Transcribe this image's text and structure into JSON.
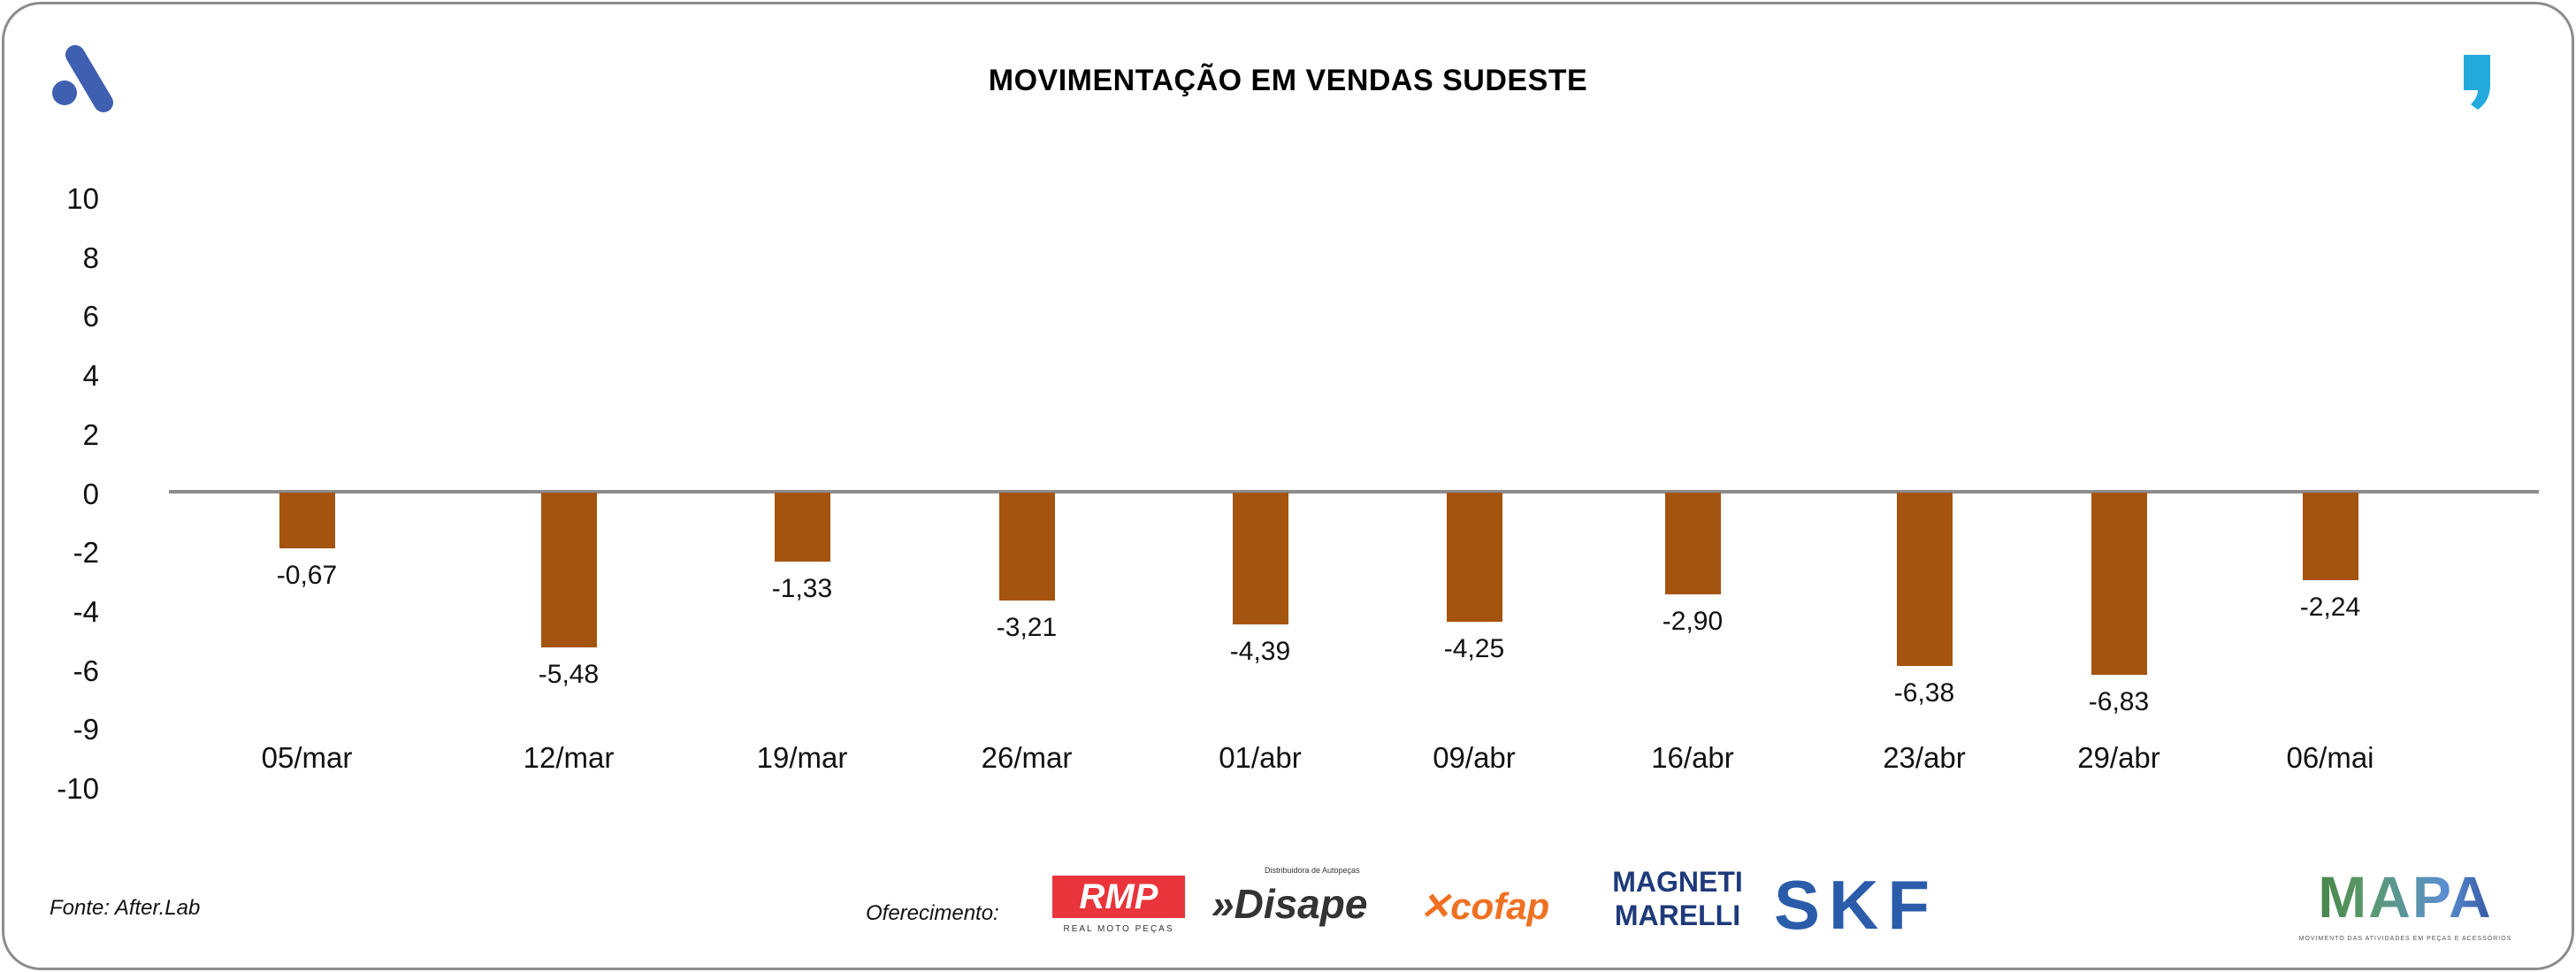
{
  "title": "MOVIMENTAÇÃO EM VENDAS SUDESTE",
  "footer": {
    "source": "Fonte: After.Lab",
    "sponsor_label": "Oferecimento:",
    "sponsors": [
      "RMP",
      "Disape",
      "cofap",
      "MAGNETI MARELLI",
      "SKF"
    ],
    "sponsor_taglines": {
      "rmp": "REAL MOTO PEÇAS",
      "disape": "Distribuidora de Autopeças"
    },
    "brand": {
      "name": "MAPA",
      "tagline": "MOVIMENTO DAS ATIVIDADES EM PEÇAS E ACESSÓRIOS"
    }
  },
  "colors": {
    "bar": "#A5540F",
    "axis": "#8c8c8c",
    "logo_left": "#3F5FB0",
    "logo_right": "#22AADD"
  },
  "chart_data": {
    "type": "bar",
    "title": "MOVIMENTAÇÃO EM VENDAS SUDESTE",
    "xlabel": "",
    "ylabel": "",
    "ylim": [
      -10,
      10
    ],
    "yticks": [
      "10",
      "8",
      "6",
      "4",
      "2",
      "0",
      "-2",
      "-4",
      "-6",
      "-9",
      "-10"
    ],
    "categories": [
      "05/mar",
      "12/mar",
      "19/mar",
      "26/mar",
      "01/abr",
      "09/abr",
      "16/abr",
      "23/abr",
      "29/abr",
      "06/mai"
    ],
    "values": [
      -0.67,
      -5.48,
      -1.33,
      -3.21,
      -4.39,
      -4.25,
      -2.9,
      -6.38,
      -6.83,
      -2.24
    ],
    "value_labels": [
      "-0,67",
      "-5,48",
      "-1,33",
      "-3,21",
      "-4,39",
      "-4,25",
      "-2,90",
      "-6,38",
      "-6,83",
      "-2,24"
    ],
    "grid": false,
    "legend": "none"
  }
}
